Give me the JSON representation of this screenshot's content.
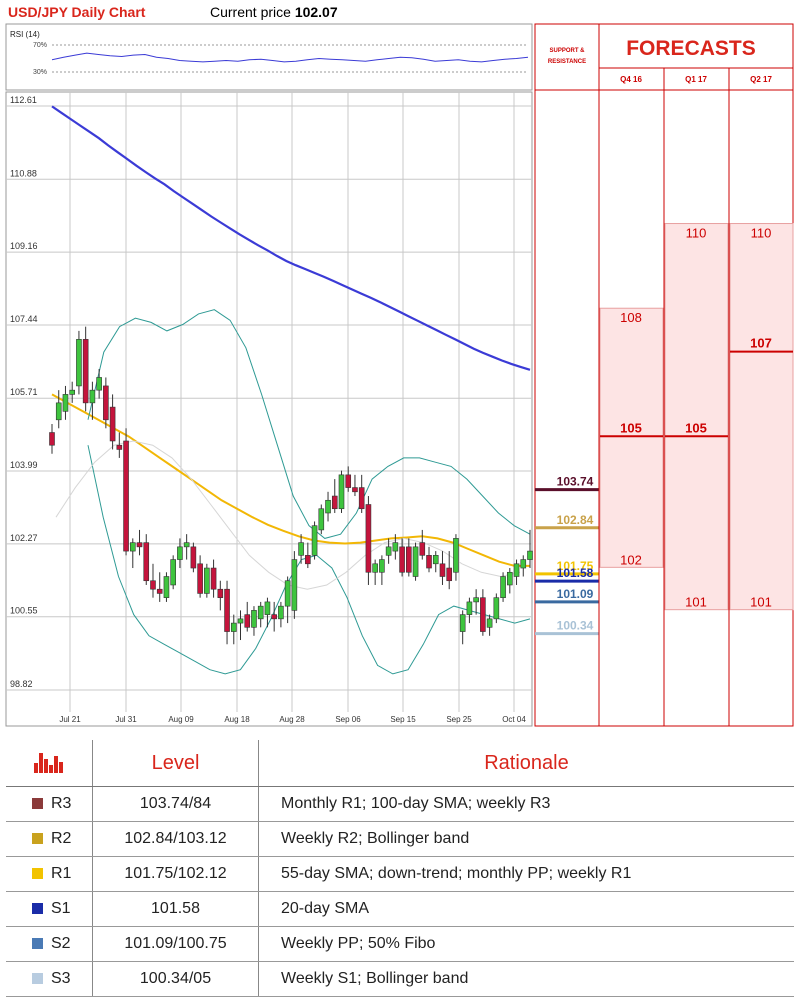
{
  "header": {
    "title": "USD/JPY Daily Chart",
    "price_label": "Current price",
    "price_value": "102.07"
  },
  "rsi": {
    "label": "RSI (14)",
    "upper": "70%",
    "lower": "30%",
    "values": [
      48,
      52,
      55,
      58,
      56,
      54,
      53,
      55,
      56,
      52,
      50,
      47,
      46,
      45,
      46,
      47,
      46,
      48,
      49,
      47,
      45,
      46,
      48,
      50,
      49,
      48,
      47,
      46,
      48,
      50,
      52,
      51,
      49,
      46,
      47,
      48,
      46,
      45,
      47,
      49,
      50,
      52
    ]
  },
  "chart_data": {
    "type": "candlestick",
    "title": "USD/JPY Daily Chart",
    "y_ticks": [
      "112.61",
      "110.88",
      "109.16",
      "107.44",
      "105.71",
      "103.99",
      "102.27",
      "100.55",
      "98.82"
    ],
    "ylim": [
      98.82,
      112.61
    ],
    "x_labels": [
      "Jul 21",
      "Jul 31",
      "Aug 09",
      "Aug 18",
      "Aug 28",
      "Sep 06",
      "Sep 15",
      "Sep 25",
      "Oct 04"
    ],
    "candles": [
      {
        "o": 104.9,
        "h": 105.1,
        "l": 104.4,
        "c": 104.6
      },
      {
        "o": 105.2,
        "h": 105.9,
        "l": 105.0,
        "c": 105.6
      },
      {
        "o": 105.4,
        "h": 106.0,
        "l": 105.2,
        "c": 105.8
      },
      {
        "o": 105.8,
        "h": 106.1,
        "l": 105.6,
        "c": 105.9
      },
      {
        "o": 106.0,
        "h": 107.3,
        "l": 105.8,
        "c": 107.1
      },
      {
        "o": 107.1,
        "h": 107.4,
        "l": 105.4,
        "c": 105.6
      },
      {
        "o": 105.6,
        "h": 106.1,
        "l": 105.2,
        "c": 105.9
      },
      {
        "o": 105.9,
        "h": 106.4,
        "l": 105.7,
        "c": 106.2
      },
      {
        "o": 106.0,
        "h": 106.2,
        "l": 105.0,
        "c": 105.2
      },
      {
        "o": 105.5,
        "h": 105.8,
        "l": 104.5,
        "c": 104.7
      },
      {
        "o": 104.6,
        "h": 104.9,
        "l": 104.3,
        "c": 104.5
      },
      {
        "o": 104.7,
        "h": 105.0,
        "l": 102.0,
        "c": 102.1
      },
      {
        "o": 102.1,
        "h": 102.4,
        "l": 101.7,
        "c": 102.3
      },
      {
        "o": 102.3,
        "h": 102.6,
        "l": 102.0,
        "c": 102.2
      },
      {
        "o": 102.3,
        "h": 102.5,
        "l": 101.3,
        "c": 101.4
      },
      {
        "o": 101.4,
        "h": 101.8,
        "l": 101.0,
        "c": 101.2
      },
      {
        "o": 101.2,
        "h": 101.6,
        "l": 100.9,
        "c": 101.1
      },
      {
        "o": 101.0,
        "h": 101.6,
        "l": 100.9,
        "c": 101.5
      },
      {
        "o": 101.3,
        "h": 102.0,
        "l": 101.2,
        "c": 101.9
      },
      {
        "o": 101.9,
        "h": 102.4,
        "l": 101.7,
        "c": 102.2
      },
      {
        "o": 102.2,
        "h": 102.5,
        "l": 101.9,
        "c": 102.3
      },
      {
        "o": 102.2,
        "h": 102.3,
        "l": 101.6,
        "c": 101.7
      },
      {
        "o": 101.8,
        "h": 102.0,
        "l": 101.0,
        "c": 101.1
      },
      {
        "o": 101.1,
        "h": 101.8,
        "l": 101.0,
        "c": 101.7
      },
      {
        "o": 101.7,
        "h": 101.9,
        "l": 101.0,
        "c": 101.2
      },
      {
        "o": 101.2,
        "h": 101.4,
        "l": 100.7,
        "c": 101.0
      },
      {
        "o": 101.2,
        "h": 101.4,
        "l": 99.9,
        "c": 100.2
      },
      {
        "o": 100.2,
        "h": 100.6,
        "l": 99.9,
        "c": 100.4
      },
      {
        "o": 100.4,
        "h": 100.7,
        "l": 100.0,
        "c": 100.5
      },
      {
        "o": 100.6,
        "h": 100.9,
        "l": 100.2,
        "c": 100.3
      },
      {
        "o": 100.3,
        "h": 100.8,
        "l": 100.1,
        "c": 100.7
      },
      {
        "o": 100.5,
        "h": 100.9,
        "l": 100.3,
        "c": 100.8
      },
      {
        "o": 100.6,
        "h": 101.0,
        "l": 100.3,
        "c": 100.9
      },
      {
        "o": 100.6,
        "h": 100.9,
        "l": 100.2,
        "c": 100.5
      },
      {
        "o": 100.5,
        "h": 100.9,
        "l": 100.3,
        "c": 100.8
      },
      {
        "o": 100.8,
        "h": 101.5,
        "l": 100.4,
        "c": 101.4
      },
      {
        "o": 100.7,
        "h": 102.1,
        "l": 100.5,
        "c": 101.9
      },
      {
        "o": 102.0,
        "h": 102.5,
        "l": 101.8,
        "c": 102.3
      },
      {
        "o": 102.0,
        "h": 102.3,
        "l": 101.7,
        "c": 101.8
      },
      {
        "o": 102.0,
        "h": 102.8,
        "l": 101.9,
        "c": 102.7
      },
      {
        "o": 102.6,
        "h": 103.2,
        "l": 102.5,
        "c": 103.1
      },
      {
        "o": 103.0,
        "h": 103.5,
        "l": 102.8,
        "c": 103.3
      },
      {
        "o": 103.4,
        "h": 103.8,
        "l": 103.0,
        "c": 103.1
      },
      {
        "o": 103.1,
        "h": 104.0,
        "l": 103.0,
        "c": 103.9
      },
      {
        "o": 103.9,
        "h": 104.1,
        "l": 103.5,
        "c": 103.6
      },
      {
        "o": 103.6,
        "h": 103.9,
        "l": 103.4,
        "c": 103.5
      },
      {
        "o": 103.6,
        "h": 103.9,
        "l": 103.0,
        "c": 103.1
      },
      {
        "o": 103.2,
        "h": 103.4,
        "l": 101.3,
        "c": 101.6
      },
      {
        "o": 101.6,
        "h": 101.9,
        "l": 101.3,
        "c": 101.8
      },
      {
        "o": 101.6,
        "h": 102.0,
        "l": 101.3,
        "c": 101.9
      },
      {
        "o": 102.0,
        "h": 102.4,
        "l": 101.8,
        "c": 102.2
      },
      {
        "o": 102.1,
        "h": 102.5,
        "l": 101.9,
        "c": 102.3
      },
      {
        "o": 102.2,
        "h": 102.4,
        "l": 101.5,
        "c": 101.6
      },
      {
        "o": 102.2,
        "h": 102.4,
        "l": 101.5,
        "c": 101.6
      },
      {
        "o": 101.5,
        "h": 102.3,
        "l": 101.4,
        "c": 102.2
      },
      {
        "o": 102.3,
        "h": 102.6,
        "l": 101.9,
        "c": 102.0
      },
      {
        "o": 102.0,
        "h": 102.2,
        "l": 101.6,
        "c": 101.7
      },
      {
        "o": 101.8,
        "h": 102.1,
        "l": 101.6,
        "c": 102.0
      },
      {
        "o": 101.8,
        "h": 102.1,
        "l": 101.3,
        "c": 101.5
      },
      {
        "o": 101.7,
        "h": 102.1,
        "l": 101.2,
        "c": 101.4
      },
      {
        "o": 101.6,
        "h": 102.5,
        "l": 101.4,
        "c": 102.4
      },
      {
        "o": 100.2,
        "h": 100.7,
        "l": 99.9,
        "c": 100.6
      },
      {
        "o": 100.6,
        "h": 101.0,
        "l": 100.4,
        "c": 100.9
      },
      {
        "o": 100.9,
        "h": 101.2,
        "l": 100.6,
        "c": 101.0
      },
      {
        "o": 101.0,
        "h": 101.2,
        "l": 100.1,
        "c": 100.2
      },
      {
        "o": 100.3,
        "h": 100.6,
        "l": 100.1,
        "c": 100.5
      },
      {
        "o": 100.5,
        "h": 101.1,
        "l": 100.4,
        "c": 101.0
      },
      {
        "o": 101.0,
        "h": 101.6,
        "l": 100.9,
        "c": 101.5
      },
      {
        "o": 101.3,
        "h": 101.7,
        "l": 101.1,
        "c": 101.6
      },
      {
        "o": 101.5,
        "h": 101.9,
        "l": 101.3,
        "c": 101.8
      },
      {
        "o": 101.7,
        "h": 102.0,
        "l": 101.5,
        "c": 101.9
      },
      {
        "o": 101.9,
        "h": 102.6,
        "l": 101.7,
        "c": 102.1
      }
    ],
    "series": [
      {
        "name": "",
        "color": "#3b3bd6",
        "values": [
          112.6,
          112.45,
          112.3,
          112.15,
          112.0,
          111.85,
          111.68,
          111.52,
          111.36,
          111.2,
          111.05,
          110.9,
          110.76,
          110.6,
          110.45,
          110.3,
          110.15,
          110.0,
          109.86,
          109.72,
          109.58,
          109.45,
          109.32,
          109.2,
          109.07,
          108.95,
          108.85,
          108.76,
          108.67,
          108.58,
          108.48,
          108.38,
          108.28,
          108.18,
          108.08,
          107.98,
          107.87,
          107.76,
          107.65,
          107.54,
          107.43,
          107.32,
          107.21,
          107.1,
          106.99,
          106.88,
          106.78,
          106.69,
          106.6,
          106.52,
          106.45,
          106.38
        ]
      },
      {
        "name": "",
        "color": "#f2b705",
        "values": [
          105.8,
          105.6,
          105.4,
          105.2,
          105.0,
          104.8,
          104.55,
          104.3,
          104.05,
          103.8,
          103.55,
          103.3,
          103.1,
          102.9,
          102.72,
          102.58,
          102.45,
          102.35,
          102.3,
          102.28,
          102.3,
          102.35,
          102.4,
          102.42,
          102.45,
          102.4,
          102.3,
          102.15,
          102.0,
          101.85,
          101.75,
          101.75
        ]
      },
      {
        "name": "",
        "color": "#2e9a94",
        "values": [
          105.2,
          106.8,
          107.4,
          107.6,
          107.5,
          107.3,
          107.45,
          107.7,
          107.8,
          107.55,
          106.9,
          105.8,
          104.6,
          103.4,
          102.7,
          102.4,
          102.5,
          103.0,
          103.8,
          104.1,
          104.3,
          104.3,
          104.2,
          104.1,
          103.8,
          103.4,
          103.0,
          102.7,
          102.5
        ]
      },
      {
        "name": "",
        "color": "#2e9a94",
        "values": [
          104.6,
          102.9,
          101.5,
          100.6,
          100.1,
          99.9,
          99.7,
          99.5,
          99.3,
          99.2,
          99.3,
          99.8,
          100.5,
          101.3,
          101.9,
          102.0,
          101.7,
          101.0,
          100.1,
          99.4,
          99.2,
          99.3,
          99.9,
          100.6,
          100.8,
          100.7,
          100.6,
          100.5,
          100.4,
          100.5
        ]
      },
      {
        "name": "",
        "color": "#d6d6d6",
        "values": [
          102.9,
          103.6,
          104.2,
          104.6,
          104.7,
          104.6,
          104.3,
          103.8,
          103.2,
          102.6,
          102.0,
          101.6,
          101.3,
          101.2,
          101.3,
          101.6,
          102.0,
          102.3,
          102.4,
          102.3,
          102.1,
          101.8,
          101.6,
          101.5,
          101.6
        ]
      }
    ],
    "levels": [
      {
        "value": "103.74",
        "color": "#5a0f2a"
      },
      {
        "value": "102.84",
        "color": "#c9a24a"
      },
      {
        "value": "101.75",
        "color": "#f2c300"
      },
      {
        "value": "101.58",
        "color": "#1a2ca8"
      },
      {
        "value": "101.09",
        "color": "#3a6aa0"
      },
      {
        "value": "100.34",
        "color": "#a9c2d6"
      }
    ]
  },
  "forecasts": {
    "title": "FORECASTS",
    "sr_label_1": "SUPPORT &",
    "sr_label_2": "RESISTANCE",
    "columns": [
      {
        "label": "Q4 16",
        "low": "102",
        "high": "108",
        "central": "105"
      },
      {
        "label": "Q1 17",
        "low": "101",
        "high": "110",
        "central": "105"
      },
      {
        "label": "Q2 17",
        "low": "101",
        "high": "110",
        "central": "107"
      }
    ]
  },
  "table": {
    "headers": {
      "level": "Level",
      "rationale": "Rationale"
    },
    "rows": [
      {
        "name": "R3",
        "color": "#8b3a3a",
        "level": "103.74/84",
        "rationale": "Monthly R1; 100-day SMA; weekly R3"
      },
      {
        "name": "R2",
        "color": "#c9a21e",
        "level": "102.84/103.12",
        "rationale": "Weekly R2; Bollinger band"
      },
      {
        "name": "R1",
        "color": "#f2c300",
        "level": "101.75/102.12",
        "rationale": "55-day SMA; down-trend; monthly PP; weekly R1"
      },
      {
        "name": "S1",
        "color": "#1a2ca8",
        "level": "101.58",
        "rationale": "20-day SMA"
      },
      {
        "name": "S2",
        "color": "#4a7ab5",
        "level": "101.09/100.75",
        "rationale": "Weekly PP; 50% Fibo"
      },
      {
        "name": "S3",
        "color": "#b8cce0",
        "level": "100.34/05",
        "rationale": "Weekly S1; Bollinger band"
      }
    ]
  }
}
